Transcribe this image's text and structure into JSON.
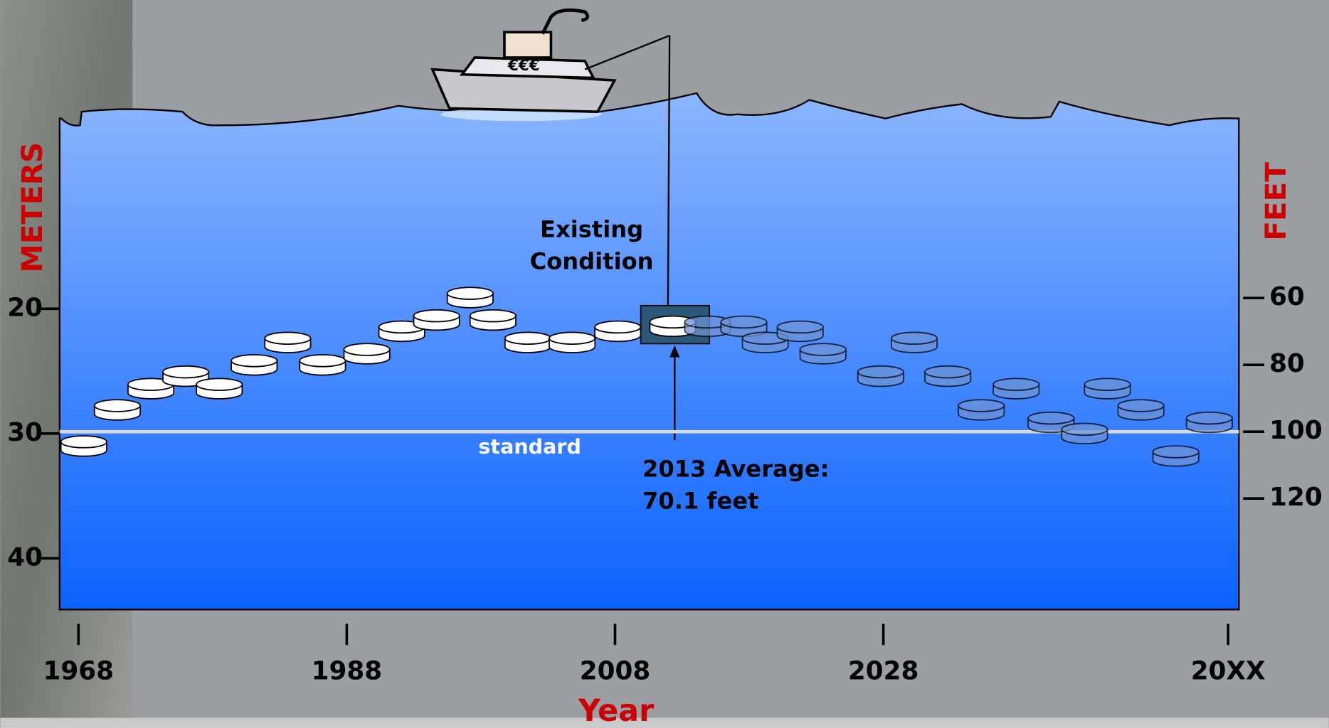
{
  "chart_data": {
    "type": "disk-scatter",
    "ylabel": "METERS",
    "y2label": "FEET",
    "xlabel": "Year",
    "xlim": [
      1966.6,
      2054.5
    ],
    "xticks": [
      1968,
      1988,
      2008,
      2028,
      {
        "value": 2053.7,
        "label": "20XX"
      }
    ],
    "ylim": [
      4.75,
      44.1
    ],
    "yticks": [
      20,
      30,
      40
    ],
    "y2lim": [
      6.3,
      153.2
    ],
    "y2ticks": [
      60,
      80,
      100,
      120
    ],
    "series": [
      {
        "color": "#ffffff",
        "x": [
          1968.4,
          1970.9,
          1973.4,
          1976,
          1978.5,
          1981.1,
          1983.6,
          1986.2,
          1989.5,
          1992.1,
          1994.7,
          1997.2,
          1998.9,
          2001.5,
          2004.8,
          2008.2,
          2012.3
        ],
        "values": [
          31,
          28.1,
          26.4,
          25.4,
          26.4,
          24.5,
          22.7,
          24.5,
          23.6,
          21.8,
          20.9,
          19.1,
          20.9,
          22.7,
          22.7,
          21.8,
          21.4
        ]
      },
      {
        "color": "#6f93d6",
        "x": [
          2014.9,
          2017.6,
          2019.2,
          2021.8,
          2023.5,
          2027.8,
          2030.3,
          2032.8,
          2035.3,
          2037.9,
          2040.5,
          2043,
          2044.7,
          2047.2,
          2049.8,
          2052.3
        ],
        "values": [
          21.4,
          21.4,
          22.7,
          21.8,
          23.6,
          25.4,
          22.7,
          25.4,
          28.1,
          26.4,
          29.1,
          30,
          26.4,
          28.1,
          31.8,
          29.1
        ]
      }
    ],
    "standard": {
      "label": "standard",
      "value": 100,
      "axis": "y2"
    },
    "annotations": [
      "Existing Condition",
      "2013 Average: 70.1 feet"
    ]
  }
}
